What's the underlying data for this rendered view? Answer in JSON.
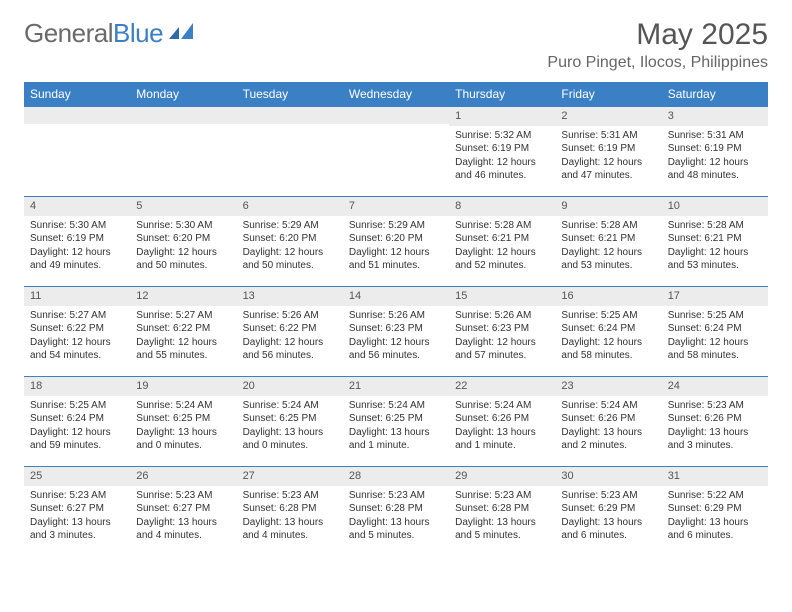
{
  "logo": {
    "general": "General",
    "blue": "Blue"
  },
  "title": "May 2025",
  "location": "Puro Pinget, Ilocos, Philippines",
  "day_headers": [
    "Sunday",
    "Monday",
    "Tuesday",
    "Wednesday",
    "Thursday",
    "Friday",
    "Saturday"
  ],
  "colors": {
    "header_bg": "#3b7fc4",
    "header_text": "#ffffff",
    "daynum_bg": "#ececec",
    "border": "#3b7fc4",
    "text": "#333333"
  },
  "weeks": [
    [
      {
        "num": "",
        "sunrise": "",
        "sunset": "",
        "daylight": ""
      },
      {
        "num": "",
        "sunrise": "",
        "sunset": "",
        "daylight": ""
      },
      {
        "num": "",
        "sunrise": "",
        "sunset": "",
        "daylight": ""
      },
      {
        "num": "",
        "sunrise": "",
        "sunset": "",
        "daylight": ""
      },
      {
        "num": "1",
        "sunrise": "Sunrise: 5:32 AM",
        "sunset": "Sunset: 6:19 PM",
        "daylight": "Daylight: 12 hours and 46 minutes."
      },
      {
        "num": "2",
        "sunrise": "Sunrise: 5:31 AM",
        "sunset": "Sunset: 6:19 PM",
        "daylight": "Daylight: 12 hours and 47 minutes."
      },
      {
        "num": "3",
        "sunrise": "Sunrise: 5:31 AM",
        "sunset": "Sunset: 6:19 PM",
        "daylight": "Daylight: 12 hours and 48 minutes."
      }
    ],
    [
      {
        "num": "4",
        "sunrise": "Sunrise: 5:30 AM",
        "sunset": "Sunset: 6:19 PM",
        "daylight": "Daylight: 12 hours and 49 minutes."
      },
      {
        "num": "5",
        "sunrise": "Sunrise: 5:30 AM",
        "sunset": "Sunset: 6:20 PM",
        "daylight": "Daylight: 12 hours and 50 minutes."
      },
      {
        "num": "6",
        "sunrise": "Sunrise: 5:29 AM",
        "sunset": "Sunset: 6:20 PM",
        "daylight": "Daylight: 12 hours and 50 minutes."
      },
      {
        "num": "7",
        "sunrise": "Sunrise: 5:29 AM",
        "sunset": "Sunset: 6:20 PM",
        "daylight": "Daylight: 12 hours and 51 minutes."
      },
      {
        "num": "8",
        "sunrise": "Sunrise: 5:28 AM",
        "sunset": "Sunset: 6:21 PM",
        "daylight": "Daylight: 12 hours and 52 minutes."
      },
      {
        "num": "9",
        "sunrise": "Sunrise: 5:28 AM",
        "sunset": "Sunset: 6:21 PM",
        "daylight": "Daylight: 12 hours and 53 minutes."
      },
      {
        "num": "10",
        "sunrise": "Sunrise: 5:28 AM",
        "sunset": "Sunset: 6:21 PM",
        "daylight": "Daylight: 12 hours and 53 minutes."
      }
    ],
    [
      {
        "num": "11",
        "sunrise": "Sunrise: 5:27 AM",
        "sunset": "Sunset: 6:22 PM",
        "daylight": "Daylight: 12 hours and 54 minutes."
      },
      {
        "num": "12",
        "sunrise": "Sunrise: 5:27 AM",
        "sunset": "Sunset: 6:22 PM",
        "daylight": "Daylight: 12 hours and 55 minutes."
      },
      {
        "num": "13",
        "sunrise": "Sunrise: 5:26 AM",
        "sunset": "Sunset: 6:22 PM",
        "daylight": "Daylight: 12 hours and 56 minutes."
      },
      {
        "num": "14",
        "sunrise": "Sunrise: 5:26 AM",
        "sunset": "Sunset: 6:23 PM",
        "daylight": "Daylight: 12 hours and 56 minutes."
      },
      {
        "num": "15",
        "sunrise": "Sunrise: 5:26 AM",
        "sunset": "Sunset: 6:23 PM",
        "daylight": "Daylight: 12 hours and 57 minutes."
      },
      {
        "num": "16",
        "sunrise": "Sunrise: 5:25 AM",
        "sunset": "Sunset: 6:24 PM",
        "daylight": "Daylight: 12 hours and 58 minutes."
      },
      {
        "num": "17",
        "sunrise": "Sunrise: 5:25 AM",
        "sunset": "Sunset: 6:24 PM",
        "daylight": "Daylight: 12 hours and 58 minutes."
      }
    ],
    [
      {
        "num": "18",
        "sunrise": "Sunrise: 5:25 AM",
        "sunset": "Sunset: 6:24 PM",
        "daylight": "Daylight: 12 hours and 59 minutes."
      },
      {
        "num": "19",
        "sunrise": "Sunrise: 5:24 AM",
        "sunset": "Sunset: 6:25 PM",
        "daylight": "Daylight: 13 hours and 0 minutes."
      },
      {
        "num": "20",
        "sunrise": "Sunrise: 5:24 AM",
        "sunset": "Sunset: 6:25 PM",
        "daylight": "Daylight: 13 hours and 0 minutes."
      },
      {
        "num": "21",
        "sunrise": "Sunrise: 5:24 AM",
        "sunset": "Sunset: 6:25 PM",
        "daylight": "Daylight: 13 hours and 1 minute."
      },
      {
        "num": "22",
        "sunrise": "Sunrise: 5:24 AM",
        "sunset": "Sunset: 6:26 PM",
        "daylight": "Daylight: 13 hours and 1 minute."
      },
      {
        "num": "23",
        "sunrise": "Sunrise: 5:24 AM",
        "sunset": "Sunset: 6:26 PM",
        "daylight": "Daylight: 13 hours and 2 minutes."
      },
      {
        "num": "24",
        "sunrise": "Sunrise: 5:23 AM",
        "sunset": "Sunset: 6:26 PM",
        "daylight": "Daylight: 13 hours and 3 minutes."
      }
    ],
    [
      {
        "num": "25",
        "sunrise": "Sunrise: 5:23 AM",
        "sunset": "Sunset: 6:27 PM",
        "daylight": "Daylight: 13 hours and 3 minutes."
      },
      {
        "num": "26",
        "sunrise": "Sunrise: 5:23 AM",
        "sunset": "Sunset: 6:27 PM",
        "daylight": "Daylight: 13 hours and 4 minutes."
      },
      {
        "num": "27",
        "sunrise": "Sunrise: 5:23 AM",
        "sunset": "Sunset: 6:28 PM",
        "daylight": "Daylight: 13 hours and 4 minutes."
      },
      {
        "num": "28",
        "sunrise": "Sunrise: 5:23 AM",
        "sunset": "Sunset: 6:28 PM",
        "daylight": "Daylight: 13 hours and 5 minutes."
      },
      {
        "num": "29",
        "sunrise": "Sunrise: 5:23 AM",
        "sunset": "Sunset: 6:28 PM",
        "daylight": "Daylight: 13 hours and 5 minutes."
      },
      {
        "num": "30",
        "sunrise": "Sunrise: 5:23 AM",
        "sunset": "Sunset: 6:29 PM",
        "daylight": "Daylight: 13 hours and 6 minutes."
      },
      {
        "num": "31",
        "sunrise": "Sunrise: 5:22 AM",
        "sunset": "Sunset: 6:29 PM",
        "daylight": "Daylight: 13 hours and 6 minutes."
      }
    ]
  ]
}
